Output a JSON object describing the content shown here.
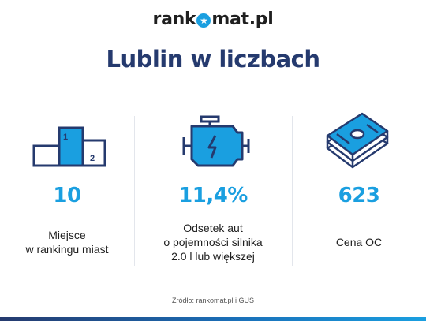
{
  "logo": {
    "text_before": "rank",
    "text_after": "mat.pl"
  },
  "title": "Lublin w liczbach",
  "stats": [
    {
      "icon": "podium-icon",
      "value": "10",
      "label": "Miejsce\nw rankingu miast",
      "podium_first": "1",
      "podium_second": "2"
    },
    {
      "icon": "car-engine-icon",
      "value": "11,4%",
      "label": "Odsetek aut\no pojemności silnika\n2.0 l lub większej"
    },
    {
      "icon": "money-stack-icon",
      "value": "623",
      "label": "Cena OC"
    }
  ],
  "source": "Źródło: rankomat.pl i GUS",
  "colors": {
    "navy": "#253a6e",
    "accent": "#1a9fe0",
    "text": "#1f1f1f"
  }
}
